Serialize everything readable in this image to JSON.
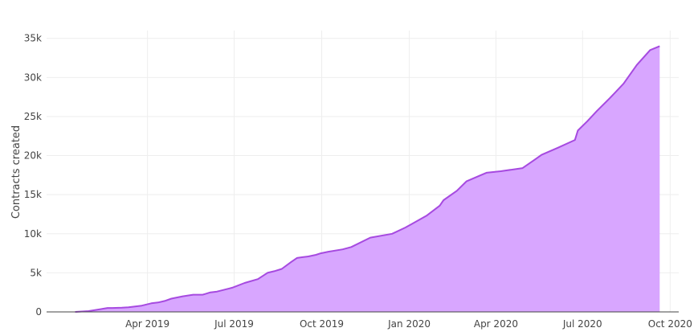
{
  "chart_data": {
    "type": "area",
    "title": "",
    "xlabel": "",
    "ylabel": "Contracts created",
    "ylim": [
      0,
      36000
    ],
    "xlim": [
      "2018-12-16",
      "2020-10-10"
    ],
    "grid": true,
    "legend": "none",
    "colors": {
      "fill": "#d8a6ff",
      "line": "#a64ae0"
    },
    "x_ticks": [
      {
        "date": "2019-04-01",
        "label": "Apr 2019"
      },
      {
        "date": "2019-07-01",
        "label": "Jul 2019"
      },
      {
        "date": "2019-10-01",
        "label": "Oct 2019"
      },
      {
        "date": "2020-01-01",
        "label": "Jan 2020"
      },
      {
        "date": "2020-04-01",
        "label": "Apr 2020"
      },
      {
        "date": "2020-07-01",
        "label": "Jul 2020"
      },
      {
        "date": "2020-10-01",
        "label": "Oct 2020"
      }
    ],
    "y_ticks": [
      {
        "value": 0,
        "label": "0"
      },
      {
        "value": 5000,
        "label": "5k"
      },
      {
        "value": 10000,
        "label": "10k"
      },
      {
        "value": 15000,
        "label": "15k"
      },
      {
        "value": 20000,
        "label": "20k"
      },
      {
        "value": 25000,
        "label": "25k"
      },
      {
        "value": 30000,
        "label": "30k"
      },
      {
        "value": 35000,
        "label": "35k"
      }
    ],
    "series": [
      {
        "x": [
          "2019-01-15",
          "2019-01-29",
          "2019-02-08",
          "2019-02-18",
          "2019-02-23",
          "2019-03-05",
          "2019-03-12",
          "2019-03-19",
          "2019-03-26",
          "2019-04-05",
          "2019-04-12",
          "2019-04-19",
          "2019-04-26",
          "2019-05-08",
          "2019-05-19",
          "2019-05-29",
          "2019-06-06",
          "2019-06-13",
          "2019-06-26",
          "2019-06-29",
          "2019-07-12",
          "2019-07-26",
          "2019-08-05",
          "2019-08-12",
          "2019-08-20",
          "2019-08-30",
          "2019-09-05",
          "2019-09-11",
          "2019-09-17",
          "2019-09-25",
          "2019-09-30",
          "2019-10-08",
          "2019-10-23",
          "2019-11-01",
          "2019-11-21",
          "2019-12-14",
          "2019-12-28",
          "2020-01-19",
          "2020-02-02",
          "2020-02-06",
          "2020-02-20",
          "2020-03-01",
          "2020-03-16",
          "2020-03-22",
          "2020-04-06",
          "2020-04-29",
          "2020-05-12",
          "2020-05-19",
          "2020-06-05",
          "2020-06-23",
          "2020-06-26",
          "2020-07-06",
          "2020-07-16",
          "2020-07-30",
          "2020-08-13",
          "2020-08-27",
          "2020-09-10",
          "2020-09-20"
        ],
        "y": [
          0,
          100,
          300,
          500,
          500,
          550,
          600,
          700,
          800,
          1100,
          1200,
          1400,
          1700,
          2000,
          2200,
          2200,
          2500,
          2600,
          3000,
          3100,
          3700,
          4200,
          5000,
          5200,
          5500,
          6400,
          6900,
          7000,
          7100,
          7300,
          7500,
          7700,
          8000,
          8300,
          9500,
          10000,
          10800,
          12300,
          13600,
          14300,
          15500,
          16700,
          17500,
          17800,
          18000,
          18400,
          19500,
          20100,
          21000,
          22000,
          23200,
          24400,
          25700,
          27400,
          29200,
          31600,
          33500,
          34000
        ]
      }
    ]
  }
}
